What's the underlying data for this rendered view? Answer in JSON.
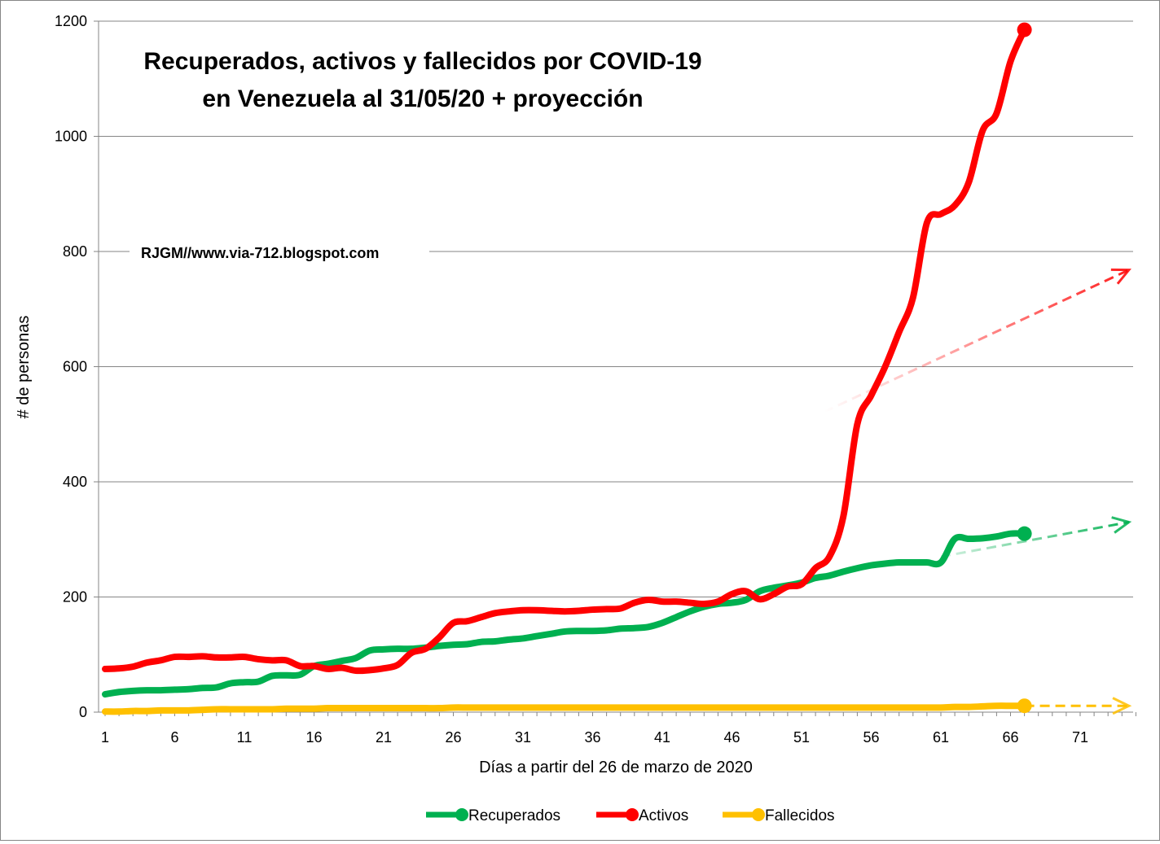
{
  "chart_data": {
    "type": "line",
    "title_line1": "Recuperados, activos y fallecidos por COVID-19",
    "title_line2": "en Venezuela al 31/05/20  + proyección",
    "credit": "RJGM//www.via-712.blogspot.com",
    "xlabel": "Días  a partir del 26 de marzo de 2020",
    "ylabel": "# de personas",
    "xlim": [
      1,
      75
    ],
    "ylim": [
      0,
      1200
    ],
    "x_ticks": [
      1,
      6,
      11,
      16,
      21,
      26,
      31,
      36,
      41,
      46,
      51,
      56,
      61,
      66,
      71
    ],
    "y_ticks": [
      0,
      200,
      400,
      600,
      800,
      1000,
      1200
    ],
    "grid": "horizontal",
    "legend_position": "bottom",
    "series": [
      {
        "name": "Recuperados",
        "color": "#00b050",
        "x": [
          1,
          2,
          3,
          4,
          5,
          6,
          7,
          8,
          9,
          10,
          11,
          12,
          13,
          14,
          15,
          16,
          17,
          18,
          19,
          20,
          21,
          22,
          23,
          24,
          25,
          26,
          27,
          28,
          29,
          30,
          31,
          32,
          33,
          34,
          35,
          36,
          37,
          38,
          39,
          40,
          41,
          42,
          43,
          44,
          45,
          46,
          47,
          48,
          49,
          50,
          51,
          52,
          53,
          54,
          55,
          56,
          57,
          58,
          59,
          60,
          61,
          62,
          63,
          64,
          65,
          66,
          67
        ],
        "values": [
          31,
          35,
          37,
          38,
          38,
          39,
          40,
          42,
          43,
          50,
          52,
          53,
          63,
          64,
          65,
          80,
          84,
          89,
          94,
          107,
          109,
          110,
          110,
          112,
          115,
          117,
          118,
          122,
          123,
          126,
          128,
          132,
          136,
          140,
          141,
          141,
          142,
          145,
          146,
          148,
          155,
          165,
          175,
          183,
          188,
          190,
          195,
          210,
          216,
          220,
          225,
          233,
          237,
          244,
          250,
          255,
          258,
          260,
          260,
          260,
          260,
          301,
          301,
          302,
          305,
          310,
          310
        ]
      },
      {
        "name": "Activos",
        "color": "#ff0000",
        "x": [
          1,
          2,
          3,
          4,
          5,
          6,
          7,
          8,
          9,
          10,
          11,
          12,
          13,
          14,
          15,
          16,
          17,
          18,
          19,
          20,
          21,
          22,
          23,
          24,
          25,
          26,
          27,
          28,
          29,
          30,
          31,
          32,
          33,
          34,
          35,
          36,
          37,
          38,
          39,
          40,
          41,
          42,
          43,
          44,
          45,
          46,
          47,
          48,
          49,
          50,
          51,
          52,
          53,
          54,
          55,
          56,
          57,
          58,
          59,
          60,
          61,
          62,
          63,
          64,
          65,
          66,
          67
        ],
        "values": [
          75,
          76,
          79,
          86,
          90,
          96,
          96,
          97,
          95,
          95,
          96,
          92,
          90,
          90,
          80,
          80,
          75,
          77,
          72,
          73,
          76,
          82,
          103,
          110,
          130,
          155,
          158,
          165,
          172,
          175,
          177,
          177,
          176,
          175,
          176,
          178,
          179,
          180,
          190,
          195,
          192,
          192,
          190,
          188,
          192,
          205,
          210,
          196,
          205,
          218,
          222,
          250,
          270,
          340,
          500,
          550,
          600,
          660,
          720,
          850,
          865,
          880,
          920,
          1010,
          1040,
          1130,
          1185
        ]
      },
      {
        "name": "Fallecidos",
        "color": "#ffc000",
        "x": [
          1,
          2,
          3,
          4,
          5,
          6,
          7,
          8,
          9,
          10,
          11,
          12,
          13,
          14,
          15,
          16,
          17,
          18,
          19,
          20,
          21,
          22,
          23,
          24,
          25,
          26,
          27,
          28,
          29,
          30,
          31,
          32,
          33,
          34,
          35,
          36,
          37,
          38,
          39,
          40,
          41,
          42,
          43,
          44,
          45,
          46,
          47,
          48,
          49,
          50,
          51,
          52,
          53,
          54,
          55,
          56,
          57,
          58,
          59,
          60,
          61,
          62,
          63,
          64,
          65,
          66,
          67
        ],
        "values": [
          1,
          1,
          2,
          2,
          3,
          3,
          3,
          4,
          5,
          5,
          5,
          5,
          5,
          6,
          6,
          6,
          7,
          7,
          7,
          7,
          7,
          7,
          7,
          7,
          7,
          8,
          8,
          8,
          8,
          8,
          8,
          8,
          8,
          8,
          8,
          8,
          8,
          8,
          8,
          8,
          8,
          8,
          8,
          8,
          8,
          8,
          8,
          8,
          8,
          8,
          8,
          8,
          8,
          8,
          8,
          8,
          8,
          8,
          8,
          8,
          8,
          9,
          9,
          10,
          11,
          11,
          11
        ]
      }
    ],
    "projections": [
      {
        "series": "Activos",
        "from": [
          51.6,
          510
        ],
        "to": [
          74.5,
          768
        ]
      },
      {
        "series": "Recuperados",
        "from": [
          61,
          270
        ],
        "to": [
          74.5,
          330
        ]
      },
      {
        "series": "Fallecidos",
        "from": [
          67,
          11
        ],
        "to": [
          74.5,
          11
        ]
      }
    ]
  }
}
